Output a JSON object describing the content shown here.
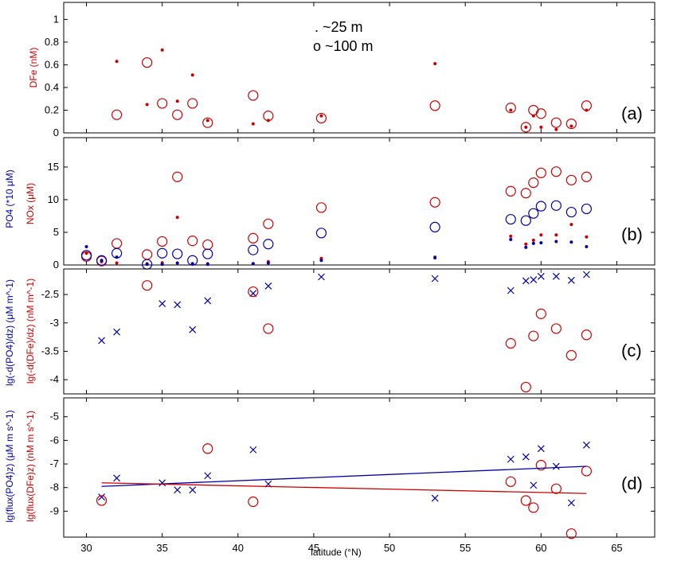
{
  "chart_data": [
    {
      "type": "scatter",
      "panel_label": "(a)",
      "ylabel": "DFe (nM)",
      "ylabel_color": "#cc0000",
      "ylim": [
        0,
        1.15
      ],
      "yticks": [
        0,
        0.2,
        0.4,
        0.6,
        0.8,
        1
      ],
      "legend": [
        ". ~25 m",
        "o ~100 m"
      ],
      "series": [
        {
          "name": "~25 m",
          "marker": "dot",
          "color": "#cc0000",
          "x": [
            32,
            34,
            35,
            36,
            37,
            38,
            41,
            42,
            45.5,
            53,
            58,
            59,
            59.5,
            60,
            61,
            62,
            63
          ],
          "y": [
            0.63,
            0.25,
            0.73,
            0.28,
            0.51,
            0.11,
            0.08,
            0.11,
            0.15,
            0.61,
            0.2,
            0.05,
            0.15,
            0.05,
            0.03,
            0.06,
            0.2
          ]
        },
        {
          "name": "~100 m",
          "marker": "circle",
          "color": "#cc0000",
          "x": [
            32,
            34,
            35,
            36,
            37,
            38,
            41,
            42,
            45.5,
            53,
            58,
            59,
            59.5,
            60,
            61,
            62,
            63
          ],
          "y": [
            0.16,
            0.62,
            0.26,
            0.16,
            0.26,
            0.09,
            0.33,
            0.15,
            0.13,
            0.24,
            0.22,
            0.05,
            0.2,
            0.17,
            0.09,
            0.08,
            0.24
          ]
        }
      ]
    },
    {
      "type": "scatter",
      "panel_label": "(b)",
      "ylabel_blue": "PO4 (*10 μM)",
      "ylabel_red": "NOx (μM)",
      "ylim": [
        0,
        19.5
      ],
      "yticks": [
        0,
        5,
        10,
        15
      ],
      "series": [
        {
          "name": "NOx ~25 m",
          "marker": "dot",
          "color": "#cc0000",
          "x": [
            30,
            31,
            32,
            34,
            35,
            36,
            37,
            38,
            41,
            42,
            45.5,
            53,
            58,
            59,
            59.5,
            60,
            61,
            62,
            63
          ],
          "y": [
            1.8,
            0.5,
            0.3,
            0.2,
            0.3,
            7.3,
            0.2,
            0.2,
            0.2,
            0.5,
            1.0,
            1.2,
            4.4,
            3.2,
            3.8,
            4.6,
            4.6,
            6.2,
            4.3
          ]
        },
        {
          "name": "NOx ~100 m",
          "marker": "circle",
          "color": "#cc0000",
          "x": [
            30,
            31,
            32,
            34,
            35,
            36,
            37,
            38,
            41,
            42,
            45.5,
            53,
            58,
            59,
            59.5,
            60,
            61,
            62,
            63
          ],
          "y": [
            1.3,
            0.6,
            3.3,
            1.6,
            3.6,
            13.5,
            3.7,
            3.1,
            4.1,
            6.3,
            8.8,
            9.6,
            11.3,
            11.0,
            12.6,
            14.1,
            14.3,
            13.0,
            13.5
          ]
        },
        {
          "name": "PO4 ~25 m",
          "marker": "dot",
          "color": "#0000aa",
          "x": [
            30,
            31,
            32,
            34,
            35,
            36,
            37,
            38,
            41,
            42,
            45.5,
            53,
            58,
            59,
            59.5,
            60,
            61,
            62,
            63
          ],
          "y": [
            2.8,
            0.7,
            1.2,
            0.1,
            0.1,
            0.3,
            0.2,
            0.1,
            0.2,
            0.3,
            0.7,
            1.1,
            3.9,
            2.7,
            3.3,
            3.4,
            3.6,
            3.5,
            2.8
          ]
        },
        {
          "name": "PO4 ~100 m",
          "marker": "circle",
          "color": "#0000aa",
          "x": [
            30,
            31,
            32,
            34,
            35,
            36,
            37,
            38,
            41,
            42,
            45.5,
            53,
            58,
            59,
            59.5,
            60,
            61,
            62,
            63
          ],
          "y": [
            1.5,
            0.7,
            1.8,
            0.1,
            1.8,
            1.7,
            0.7,
            1.7,
            2.3,
            3.2,
            4.9,
            5.8,
            7.0,
            6.8,
            7.9,
            9.0,
            9.1,
            8.1,
            8.6
          ]
        }
      ]
    },
    {
      "type": "scatter",
      "panel_label": "(c)",
      "ylabel_blue": "lg(-d(PO4)/dz) (μM m^-1)",
      "ylabel_red": "lg(-d(DFe)/dz) (nM m^-1)",
      "ylim": [
        -4.25,
        -2.05
      ],
      "yticks": [
        -4,
        -3.5,
        -3,
        -2.5
      ],
      "series": [
        {
          "name": "PO4 gradient",
          "marker": "x",
          "color": "#0000aa",
          "x": [
            31,
            32,
            35,
            36,
            37,
            38,
            41,
            42,
            45.5,
            53,
            58,
            59,
            59.5,
            60,
            61,
            62,
            63
          ],
          "y": [
            -3.31,
            -3.16,
            -2.66,
            -2.68,
            -3.12,
            -2.61,
            -2.48,
            -2.35,
            -2.19,
            -2.22,
            -2.43,
            -2.26,
            -2.24,
            -2.18,
            -2.18,
            -2.25,
            -2.15
          ]
        },
        {
          "name": "DFe gradient",
          "marker": "circle",
          "color": "#cc0000",
          "x": [
            34,
            41,
            42,
            58,
            59,
            59.5,
            60,
            61,
            62,
            63
          ],
          "y": [
            -2.34,
            -2.45,
            -3.1,
            -3.36,
            -4.13,
            -3.23,
            -2.84,
            -3.1,
            -3.57,
            -3.21
          ]
        }
      ]
    },
    {
      "type": "scatter",
      "panel_label": "(d)",
      "xlabel": "latitude (°N)",
      "ylabel_blue": "lg(flux(PO4)z) (μM m s^-1)",
      "ylabel_red": "lg(flux(DFe)z) (nM m s^-1)",
      "ylim": [
        -10.1,
        -4.2
      ],
      "yticks": [
        -9,
        -8,
        -7,
        -6,
        -5
      ],
      "xlim": [
        28.5,
        67.5
      ],
      "xticks": [
        30,
        35,
        40,
        45,
        50,
        55,
        60,
        65
      ],
      "series": [
        {
          "name": "PO4 flux",
          "marker": "x",
          "color": "#0000aa",
          "x": [
            31,
            32,
            35,
            36,
            37,
            38,
            41,
            42,
            53,
            58,
            59,
            59.5,
            60,
            61,
            62,
            63
          ],
          "y": [
            -8.4,
            -7.6,
            -7.8,
            -8.1,
            -8.1,
            -7.5,
            -6.4,
            -7.85,
            -8.45,
            -6.8,
            -6.7,
            -7.9,
            -6.35,
            -7.1,
            -8.65,
            -6.2
          ]
        },
        {
          "name": "DFe flux",
          "marker": "circle",
          "color": "#cc0000",
          "x": [
            31,
            38,
            41,
            58,
            59,
            59.5,
            60,
            61,
            62,
            63
          ],
          "y": [
            -8.55,
            -6.35,
            -8.6,
            -7.75,
            -8.55,
            -8.85,
            -7.05,
            -8.05,
            -9.95,
            -7.3
          ]
        }
      ],
      "fit_lines": [
        {
          "name": "PO4 trend",
          "color": "#0000aa",
          "x": [
            31,
            63
          ],
          "y": [
            -7.95,
            -7.1
          ]
        },
        {
          "name": "DFe trend",
          "color": "#cc0000",
          "x": [
            31,
            63
          ],
          "y": [
            -7.8,
            -8.25
          ]
        }
      ]
    }
  ]
}
